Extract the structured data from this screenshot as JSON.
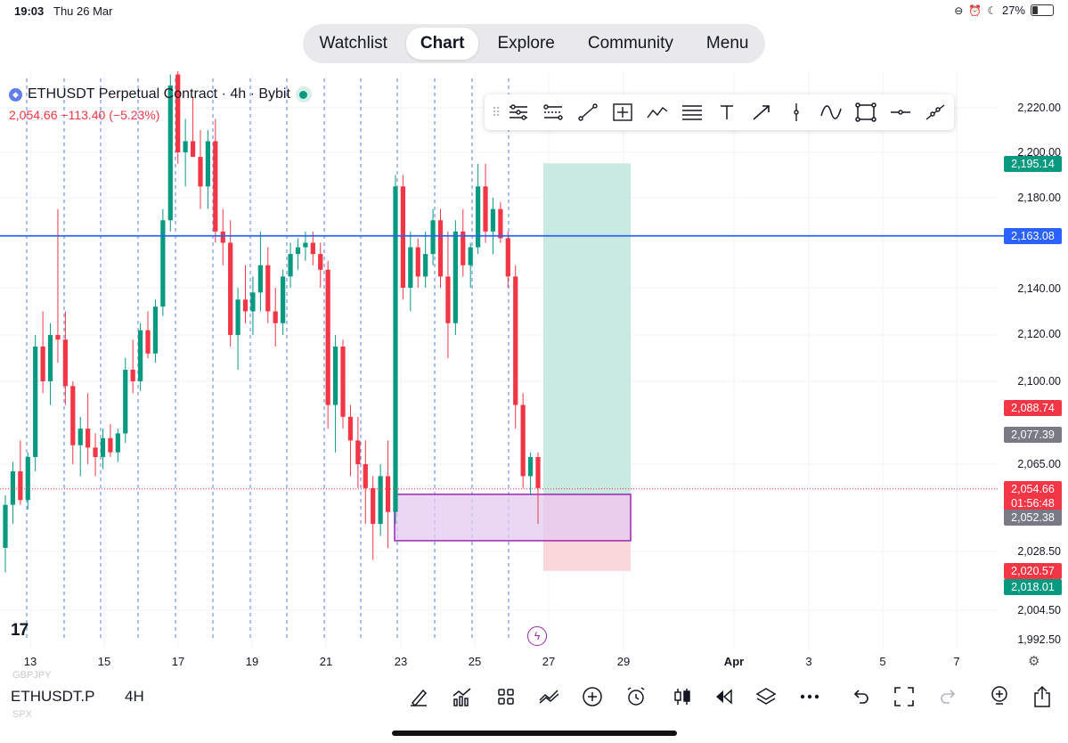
{
  "status_bar": {
    "time": "19:03",
    "date": "Thu 26 Mar",
    "battery": "27%"
  },
  "nav": {
    "items": [
      "Watchlist",
      "Chart",
      "Explore",
      "Community",
      "Menu"
    ],
    "active": "Chart"
  },
  "symbol": {
    "title": "ETHUSDT Perpetual Contract · 4h · Bybit",
    "last": "2,054.66",
    "change": "−113.40",
    "change_pct": "(−5.23%)"
  },
  "price_axis": {
    "labels": [
      "2,220.00",
      "2,200.00",
      "2,180.00",
      "2,140.00",
      "2,120.00",
      "2,100.00",
      "2,065.00",
      "2,028.50",
      "2,004.50",
      "1,992.50"
    ]
  },
  "price_tags": [
    {
      "text": "2,195.14",
      "color": "#089981"
    },
    {
      "text": "2,163.08",
      "color": "#2962ff"
    },
    {
      "text": "2,088.74",
      "color": "#f23645"
    },
    {
      "text": "2,077.39",
      "color": "#787b86"
    },
    {
      "text": "2,054.66",
      "sub": "01:56:48",
      "color": "#f23645"
    },
    {
      "text": "2,052.38",
      "color": "#787b86"
    },
    {
      "text": "2,020.57",
      "color": "#f23645"
    },
    {
      "text": "2,018.01",
      "color": "#089981"
    }
  ],
  "time_axis": {
    "labels": [
      "13",
      "15",
      "17",
      "19",
      "21",
      "23",
      "25",
      "27",
      "29",
      "Apr",
      "3",
      "5",
      "7"
    ]
  },
  "drawing_tools": [
    "pitchfork-icon",
    "fib-retracement-icon",
    "trendline-icon",
    "fixed-range-icon",
    "pattern-icon",
    "parallel-channel-icon",
    "text-icon",
    "arrow-icon",
    "vertical-line-icon",
    "curve-icon",
    "rectangle-icon",
    "horizontal-ray-icon",
    "extended-line-icon"
  ],
  "bottom_bar": {
    "symbol": "ETHUSDT.P",
    "timeframe": "4H",
    "ghost_top": "GBPJPY",
    "ghost_bottom": "SPX"
  },
  "bottom_tools": [
    "draw-icon",
    "indicators-icon",
    "templates-icon",
    "compare-icon",
    "add-icon",
    "alert-icon",
    "candle-type-icon",
    "replay-icon",
    "layers-icon",
    "more-icon",
    "undo-icon",
    "fullscreen-icon",
    "redo-icon",
    "idea-icon",
    "share-icon"
  ],
  "colors": {
    "up": "#089981",
    "down": "#f23645",
    "hline": "#2962ff",
    "vline": "#5b7fe0",
    "target": "#bfe6dc",
    "stop": "#f9d3d6",
    "zone_fill": "#e3c9f0",
    "zone_border": "#9c27b0"
  },
  "chart_data": {
    "type": "candlestick",
    "timeframe": "4h",
    "ylim": [
      1987,
      2228
    ],
    "x_ticks": [
      "13",
      "15",
      "17",
      "19",
      "21",
      "23",
      "25",
      "27",
      "29",
      "Apr",
      "3",
      "5",
      "7"
    ],
    "horizontal_line": 2163.08,
    "long_position": {
      "target": 2195.14,
      "entry": 2052.38,
      "stop": 2020.57
    },
    "zone": {
      "top": 2052.38,
      "bottom": 2033.0
    },
    "candles": [
      [
        2030,
        2052,
        2020,
        2048
      ],
      [
        2048,
        2066,
        2040,
        2062
      ],
      [
        2062,
        2075,
        2048,
        2050
      ],
      [
        2050,
        2070,
        2046,
        2068
      ],
      [
        2068,
        2120,
        2062,
        2115
      ],
      [
        2115,
        2130,
        2095,
        2100
      ],
      [
        2100,
        2125,
        2090,
        2120
      ],
      [
        2120,
        2175,
        2108,
        2118
      ],
      [
        2118,
        2130,
        2090,
        2098
      ],
      [
        2098,
        2100,
        2065,
        2073
      ],
      [
        2073,
        2085,
        2060,
        2080
      ],
      [
        2080,
        2095,
        2065,
        2072
      ],
      [
        2072,
        2078,
        2060,
        2068
      ],
      [
        2068,
        2080,
        2063,
        2076
      ],
      [
        2076,
        2082,
        2068,
        2070
      ],
      [
        2070,
        2080,
        2066,
        2078
      ],
      [
        2078,
        2110,
        2074,
        2105
      ],
      [
        2105,
        2118,
        2095,
        2100
      ],
      [
        2100,
        2125,
        2096,
        2122
      ],
      [
        2122,
        2130,
        2110,
        2112
      ],
      [
        2112,
        2135,
        2108,
        2132
      ],
      [
        2132,
        2175,
        2128,
        2170
      ],
      [
        2170,
        2235,
        2165,
        2230
      ],
      [
        2235,
        2240,
        2195,
        2200
      ],
      [
        2200,
        2215,
        2185,
        2205
      ],
      [
        2205,
        2225,
        2198,
        2198
      ],
      [
        2198,
        2210,
        2175,
        2185
      ],
      [
        2185,
        2210,
        2175,
        2205
      ],
      [
        2205,
        2215,
        2160,
        2165
      ],
      [
        2165,
        2175,
        2150,
        2160
      ],
      [
        2160,
        2170,
        2115,
        2120
      ],
      [
        2120,
        2140,
        2105,
        2135
      ],
      [
        2135,
        2150,
        2125,
        2130
      ],
      [
        2130,
        2145,
        2120,
        2138
      ],
      [
        2138,
        2165,
        2130,
        2150
      ],
      [
        2150,
        2158,
        2125,
        2130
      ],
      [
        2130,
        2140,
        2115,
        2125
      ],
      [
        2125,
        2148,
        2120,
        2145
      ],
      [
        2145,
        2160,
        2140,
        2155
      ],
      [
        2155,
        2162,
        2148,
        2158
      ],
      [
        2158,
        2165,
        2152,
        2160
      ],
      [
        2160,
        2165,
        2150,
        2155
      ],
      [
        2155,
        2160,
        2140,
        2148
      ],
      [
        2148,
        2152,
        2080,
        2090
      ],
      [
        2090,
        2120,
        2070,
        2115
      ],
      [
        2115,
        2118,
        2080,
        2085
      ],
      [
        2085,
        2090,
        2060,
        2075
      ],
      [
        2075,
        2085,
        2055,
        2065
      ],
      [
        2065,
        2075,
        2040,
        2055
      ],
      [
        2055,
        2060,
        2025,
        2040
      ],
      [
        2040,
        2065,
        2035,
        2060
      ],
      [
        2060,
        2075,
        2030,
        2045
      ],
      [
        2045,
        2190,
        2040,
        2185
      ],
      [
        2185,
        2190,
        2135,
        2140
      ],
      [
        2140,
        2165,
        2130,
        2158
      ],
      [
        2158,
        2162,
        2140,
        2145
      ],
      [
        2145,
        2165,
        2140,
        2155
      ],
      [
        2155,
        2175,
        2150,
        2170
      ],
      [
        2170,
        2175,
        2140,
        2145
      ],
      [
        2145,
        2165,
        2110,
        2125
      ],
      [
        2125,
        2170,
        2120,
        2165
      ],
      [
        2165,
        2175,
        2145,
        2150
      ],
      [
        2150,
        2160,
        2140,
        2158
      ],
      [
        2158,
        2195,
        2155,
        2185
      ],
      [
        2185,
        2195,
        2160,
        2165
      ],
      [
        2165,
        2180,
        2155,
        2175
      ],
      [
        2175,
        2178,
        2160,
        2162
      ],
      [
        2162,
        2165,
        2140,
        2145
      ],
      [
        2145,
        2150,
        2080,
        2090
      ],
      [
        2090,
        2095,
        2055,
        2060
      ],
      [
        2060,
        2070,
        2052,
        2068
      ],
      [
        2068,
        2070,
        2040,
        2055
      ]
    ]
  }
}
